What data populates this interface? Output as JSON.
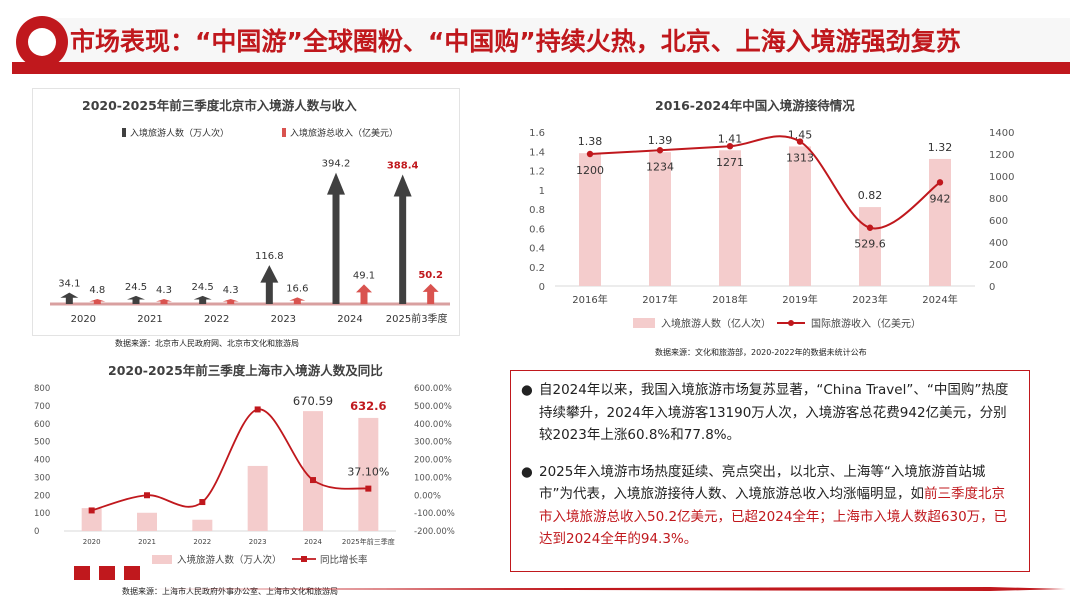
{
  "header": {
    "title": "市场表现：“中国游”全球圈粉、“中国购”持续火热，北京、上海入境游强劲复苏"
  },
  "chart_data": [
    {
      "id": "beijing",
      "type": "bar",
      "title": "2020-2025年前三季度北京市入境游人数与收入",
      "categories": [
        "2020",
        "2021",
        "2022",
        "2023",
        "2024",
        "2025前3季度"
      ],
      "series": [
        {
          "name": "入境旅游人数（万人次）",
          "values": [
            34.1,
            24.5,
            24.5,
            116.8,
            394.2,
            388.4
          ],
          "color": "#404040"
        },
        {
          "name": "入境旅游总收入（亿美元）",
          "values": [
            4.8,
            4.3,
            4.3,
            16.6,
            49.1,
            50.2
          ],
          "color": "#d9534f"
        }
      ],
      "source": "数据来源：北京市人民政府网、北京市文化和旅游局"
    },
    {
      "id": "china",
      "type": "bar",
      "title": "2016-2024年中国入境游接待情况",
      "categories": [
        "2016年",
        "2017年",
        "2018年",
        "2019年",
        "2023年",
        "2024年"
      ],
      "series": [
        {
          "name": "入境旅游人数（亿人次）",
          "type": "bar",
          "values": [
            1.38,
            1.39,
            1.41,
            1.45,
            0.82,
            1.32
          ],
          "color": "#f4cccc"
        },
        {
          "name": "国际旅游收入（亿美元）",
          "type": "line",
          "values": [
            1200,
            1234,
            1271,
            1313,
            529.6,
            942
          ],
          "color": "#c0181d"
        }
      ],
      "y_left": {
        "ticks": [
          "0",
          "0.2",
          "0.4",
          "0.6",
          "0.8",
          "1",
          "1.2",
          "1.4",
          "1.6"
        ],
        "ylim": [
          0,
          1.6
        ]
      },
      "y_right": {
        "ticks": [
          "0",
          "200",
          "400",
          "600",
          "800",
          "1000",
          "1200",
          "1400"
        ],
        "ylim": [
          0,
          1400
        ]
      },
      "source": "数据来源：文化和旅游部，2020-2022年的数据未统计公布"
    },
    {
      "id": "shanghai",
      "type": "bar",
      "title": "2020-2025年前三季度上海市入境游人数及同比",
      "categories": [
        "2020",
        "2021",
        "2022",
        "2023",
        "2024",
        "2025年前三季度"
      ],
      "series": [
        {
          "name": "入境旅游人数（万人次）",
          "type": "bar",
          "values": [
            128,
            102,
            63,
            364,
            670.59,
            632.6
          ],
          "color": "#f4cccc"
        },
        {
          "name": "同比增长率",
          "type": "line",
          "values": [
            -85,
            0,
            -38,
            480,
            85,
            37.1
          ],
          "color": "#c0181d"
        }
      ],
      "data_labels": {
        "2024": "670.59",
        "2025年前三季度": "632.6",
        "growth": "37.10%"
      },
      "y_left": {
        "ticks": [
          "0",
          "100",
          "200",
          "300",
          "400",
          "500",
          "600",
          "700",
          "800"
        ],
        "ylim": [
          0,
          800
        ]
      },
      "y_right": {
        "ticks": [
          "-200.00%",
          "-100.00%",
          "0.00%",
          "100.00%",
          "200.00%",
          "300.00%",
          "400.00%",
          "500.00%",
          "600.00%"
        ],
        "ylim": [
          -200,
          600
        ]
      },
      "source": "数据来源：上海市人民政府外事办公室、上海市文化和旅游局"
    }
  ],
  "textbox": {
    "bullet": "●",
    "p1": "自2024年以来，我国入境旅游市场复苏显著，“China Travel”、“中国购”热度持续攀升，2024年入境游客13190万人次，入境游客总花费942亿美元，分别较2023年上涨60.8%和77.8%。",
    "p2_plain": "2025年入境游市场热度延续、亮点突出，以北京、上海等“入境旅游首站城市”为代表，入境旅游接待人数、入境旅游总收入均涨幅明显，如",
    "p2_highlight": "前三季度北京市入境旅游总收入50.2亿美元，已超2024全年；上海市入境人数超630万，已达到2024全年的94.3%。"
  },
  "colors": {
    "brand": "#c0181d",
    "light": "#f4cccc",
    "dark": "#404040"
  }
}
